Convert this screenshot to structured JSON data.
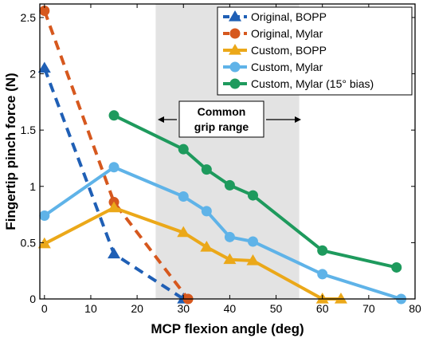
{
  "chart_data": {
    "type": "line",
    "xlabel": "MCP flexion angle (deg)",
    "ylabel": "Fingertip pinch force (N)",
    "xlim": [
      -1,
      80
    ],
    "ylim": [
      0,
      2.62
    ],
    "x_ticks": [
      0,
      10,
      20,
      30,
      40,
      50,
      60,
      70,
      80
    ],
    "y_ticks": [
      0,
      0.5,
      1,
      1.5,
      2,
      2.5
    ],
    "y_tick_labels": [
      "0",
      "0.5",
      "1",
      "1.5",
      "2",
      "2.5"
    ],
    "grid": false,
    "legend_position": "top-right",
    "shaded_region": {
      "x": [
        24,
        55
      ],
      "color": "#e3e3e3",
      "label_lines": [
        "Common",
        "grip range"
      ]
    },
    "series": [
      {
        "name": "Original, BOPP",
        "color": "#1f5fb5",
        "dashed": true,
        "marker": "triangle",
        "x": [
          0,
          15,
          30
        ],
        "y": [
          2.05,
          0.4,
          0
        ]
      },
      {
        "name": "Original, Mylar",
        "color": "#d6581e",
        "dashed": true,
        "marker": "circle",
        "x": [
          0,
          15,
          31
        ],
        "y": [
          2.56,
          0.86,
          0
        ]
      },
      {
        "name": "Custom, BOPP",
        "color": "#eba819",
        "dashed": false,
        "marker": "triangle",
        "x": [
          0,
          15,
          30,
          35,
          40,
          45,
          60,
          64
        ],
        "y": [
          0.49,
          0.81,
          0.59,
          0.46,
          0.35,
          0.34,
          0,
          0
        ]
      },
      {
        "name": "Custom, Mylar",
        "color": "#5fb3e8",
        "dashed": false,
        "marker": "circle",
        "x": [
          0,
          15,
          30,
          35,
          40,
          45,
          60,
          77
        ],
        "y": [
          0.74,
          1.17,
          0.91,
          0.78,
          0.55,
          0.51,
          0.22,
          0
        ]
      },
      {
        "name": "Custom, Mylar (15° bias)",
        "color": "#1e9a5d",
        "dashed": false,
        "marker": "circle",
        "x": [
          15,
          30,
          35,
          40,
          45,
          60,
          76
        ],
        "y": [
          1.63,
          1.33,
          1.15,
          1.01,
          0.92,
          0.43,
          0.28
        ]
      }
    ]
  }
}
